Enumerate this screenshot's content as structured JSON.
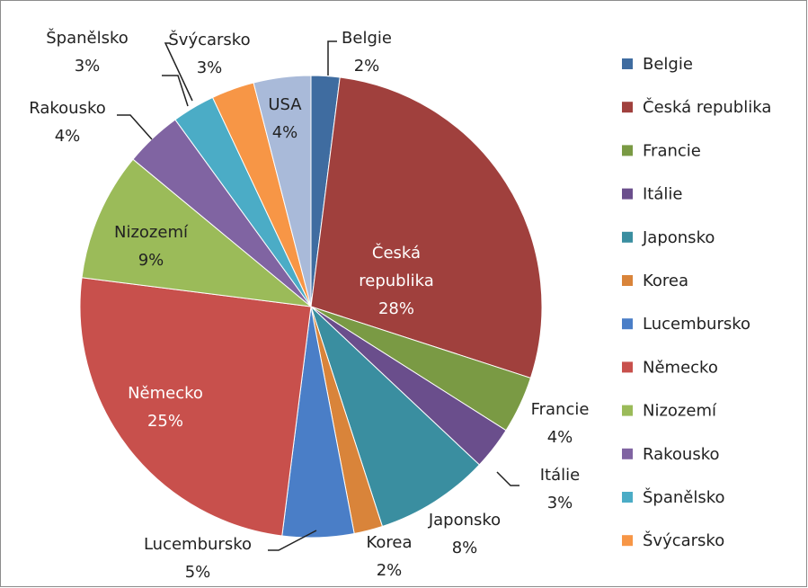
{
  "chart_data": {
    "type": "pie",
    "categories": [
      "Belgie",
      "Česká republika",
      "Francie",
      "Itálie",
      "Japonsko",
      "Korea",
      "Lucembursko",
      "Německo",
      "Nizozemí",
      "Rakousko",
      "Španělsko",
      "Švýcarsko",
      "USA"
    ],
    "values": [
      2,
      28,
      4,
      3,
      8,
      2,
      5,
      25,
      9,
      4,
      3,
      3,
      4
    ],
    "value_labels": [
      "2%",
      "28%",
      "4%",
      "3%",
      "8%",
      "2%",
      "5%",
      "25%",
      "9%",
      "4%",
      "3%",
      "3%",
      "4%"
    ],
    "colors": [
      "#3f6ca0",
      "#a0403d",
      "#7a9a44",
      "#6a4e8c",
      "#3a8ea0",
      "#d9843a",
      "#4a7ec7",
      "#c8504c",
      "#9bbb59",
      "#8064a2",
      "#4bacc6",
      "#f79646",
      "#a9bad9"
    ],
    "legend": "right"
  }
}
